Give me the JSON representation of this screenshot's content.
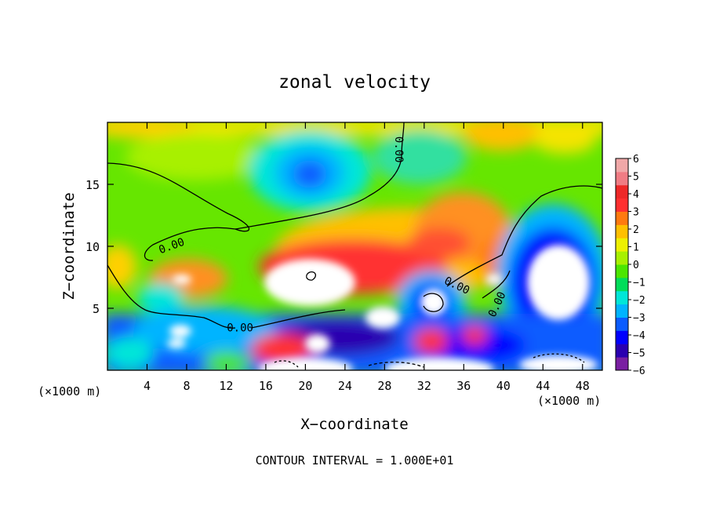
{
  "chart_data": {
    "type": "heatmap",
    "title": "zonal velocity",
    "xlabel": "X−coordinate",
    "ylabel": "Z−coordinate",
    "x_scale_note": "(×1000 m)",
    "y_scale_note": "(×1000 m)",
    "footer": "CONTOUR INTERVAL = 1.000E+01",
    "xlim": [
      0,
      50
    ],
    "ylim": [
      0,
      20
    ],
    "xticks": [
      4,
      8,
      12,
      16,
      20,
      24,
      28,
      32,
      36,
      40,
      44,
      48
    ],
    "yticks": [
      5,
      10,
      15
    ],
    "colorbar": {
      "min": -6,
      "max": 6,
      "ticks": [
        "6",
        "5",
        "4",
        "3",
        "2",
        "1",
        "0",
        "−1",
        "−2",
        "−3",
        "−4",
        "−5",
        "−6"
      ],
      "colors": [
        "#7a1fa2",
        "#2a00b0",
        "#0000ff",
        "#0a5cff",
        "#00b4ff",
        "#00e6d8",
        "#00dd5a",
        "#4ce600",
        "#a8f000",
        "#eef000",
        "#ffc000",
        "#ff7a10",
        "#ff3030",
        "#ee2828",
        "#f07c84",
        "#f0a8a8"
      ]
    },
    "contour_labels": [
      {
        "text": "0.00",
        "x": 6.5,
        "y": 10.0,
        "angle": -20
      },
      {
        "text": "0.00",
        "x": 29.4,
        "y": 17.8,
        "angle": 90
      },
      {
        "text": "0.00",
        "x": 13.4,
        "y": 3.4,
        "angle": 0
      },
      {
        "text": "0.00",
        "x": 35.3,
        "y": 6.8,
        "angle": 25
      },
      {
        "text": "0.00",
        "x": 39.4,
        "y": 5.3,
        "angle": -65
      }
    ]
  }
}
